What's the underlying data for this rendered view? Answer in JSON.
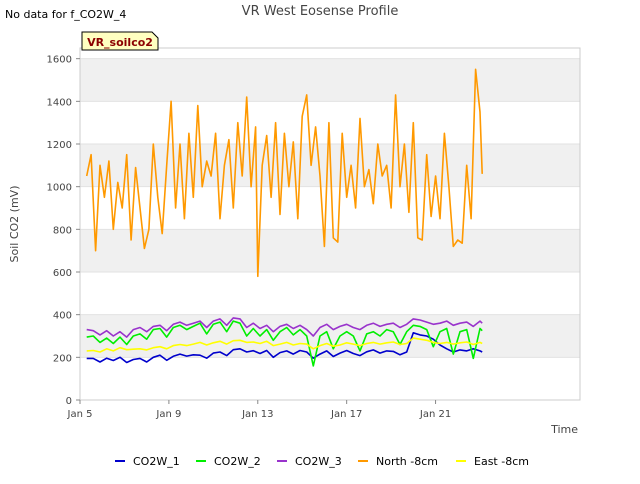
{
  "notice": "No data for f_CO2W_4",
  "badge": "VR_soilco2",
  "colors": {
    "badge_bg": "#ffffc0",
    "badge_text": "#8b0000",
    "band": "#f0f0f0"
  },
  "chart_data": {
    "type": "line",
    "title": "VR West Eosense Profile",
    "xlabel": "Time",
    "ylabel": "Soil CO2 (mV)",
    "x_unit": "days (day 0 = Jan 5)",
    "xlim": [
      0,
      22.5
    ],
    "ylim": [
      0,
      1650
    ],
    "x_ticks": [
      {
        "value": 0,
        "label": "Jan 5"
      },
      {
        "value": 4,
        "label": "Jan 9"
      },
      {
        "value": 8,
        "label": "Jan 13"
      },
      {
        "value": 12,
        "label": "Jan 17"
      },
      {
        "value": 16,
        "label": "Jan 21"
      }
    ],
    "y_ticks": [
      0,
      200,
      400,
      600,
      800,
      1000,
      1200,
      1400,
      1600
    ],
    "grid": true,
    "legend_position": "bottom",
    "series": [
      {
        "name": "CO2W_1",
        "color": "#0000cc",
        "x": [
          0.3,
          0.6,
          0.9,
          1.2,
          1.5,
          1.8,
          2.1,
          2.4,
          2.7,
          3.0,
          3.3,
          3.6,
          3.9,
          4.2,
          4.5,
          4.8,
          5.1,
          5.4,
          5.7,
          6.0,
          6.3,
          6.6,
          6.9,
          7.2,
          7.5,
          7.8,
          8.1,
          8.4,
          8.7,
          9.0,
          9.3,
          9.6,
          9.9,
          10.2,
          10.5,
          10.8,
          11.1,
          11.4,
          11.7,
          12.0,
          12.3,
          12.6,
          12.9,
          13.2,
          13.5,
          13.8,
          14.1,
          14.4,
          14.7,
          15.0,
          15.3,
          15.6,
          15.9,
          16.2,
          16.5,
          16.8,
          17.1,
          17.4,
          17.7,
          18.0,
          18.1
        ],
        "y": [
          195,
          195,
          178,
          196,
          185,
          200,
          176,
          190,
          195,
          178,
          200,
          210,
          186,
          205,
          215,
          206,
          212,
          210,
          196,
          220,
          225,
          208,
          236,
          240,
          225,
          231,
          218,
          232,
          200,
          222,
          230,
          215,
          232,
          225,
          196,
          215,
          230,
          204,
          220,
          232,
          218,
          208,
          226,
          235,
          220,
          230,
          228,
          212,
          225,
          315,
          305,
          300,
          285,
          258,
          240,
          225,
          235,
          230,
          240,
          230,
          225
        ]
      },
      {
        "name": "CO2W_2",
        "color": "#00ee00",
        "x": [
          0.3,
          0.6,
          0.9,
          1.2,
          1.5,
          1.8,
          2.1,
          2.4,
          2.7,
          3.0,
          3.3,
          3.6,
          3.9,
          4.2,
          4.5,
          4.8,
          5.1,
          5.4,
          5.7,
          6.0,
          6.3,
          6.6,
          6.9,
          7.2,
          7.5,
          7.8,
          8.1,
          8.4,
          8.7,
          9.0,
          9.3,
          9.6,
          9.9,
          10.2,
          10.5,
          10.8,
          11.1,
          11.4,
          11.7,
          12.0,
          12.3,
          12.6,
          12.9,
          13.2,
          13.5,
          13.8,
          14.1,
          14.4,
          14.7,
          15.0,
          15.3,
          15.6,
          15.9,
          16.2,
          16.5,
          16.8,
          17.1,
          17.4,
          17.7,
          18.0,
          18.1
        ],
        "y": [
          295,
          300,
          270,
          290,
          265,
          295,
          260,
          300,
          310,
          285,
          330,
          335,
          295,
          340,
          350,
          330,
          345,
          360,
          310,
          355,
          365,
          320,
          370,
          360,
          300,
          335,
          300,
          330,
          280,
          320,
          340,
          305,
          330,
          300,
          160,
          300,
          320,
          240,
          300,
          320,
          300,
          230,
          310,
          320,
          300,
          330,
          320,
          260,
          320,
          350,
          345,
          330,
          250,
          320,
          335,
          215,
          320,
          330,
          195,
          335,
          325
        ]
      },
      {
        "name": "CO2W_3",
        "color": "#9933cc",
        "x": [
          0.3,
          0.6,
          0.9,
          1.2,
          1.5,
          1.8,
          2.1,
          2.4,
          2.7,
          3.0,
          3.3,
          3.6,
          3.9,
          4.2,
          4.5,
          4.8,
          5.1,
          5.4,
          5.7,
          6.0,
          6.3,
          6.6,
          6.9,
          7.2,
          7.5,
          7.8,
          8.1,
          8.4,
          8.7,
          9.0,
          9.3,
          9.6,
          9.9,
          10.2,
          10.5,
          10.8,
          11.1,
          11.4,
          11.7,
          12.0,
          12.3,
          12.6,
          12.9,
          13.2,
          13.5,
          13.8,
          14.1,
          14.4,
          14.7,
          15.0,
          15.3,
          15.6,
          15.9,
          16.2,
          16.5,
          16.8,
          17.1,
          17.4,
          17.7,
          18.0,
          18.1
        ],
        "y": [
          330,
          325,
          305,
          325,
          300,
          320,
          295,
          330,
          340,
          320,
          345,
          350,
          325,
          355,
          365,
          350,
          360,
          370,
          340,
          370,
          380,
          350,
          385,
          380,
          340,
          360,
          335,
          350,
          320,
          345,
          355,
          335,
          350,
          330,
          300,
          340,
          355,
          330,
          345,
          355,
          340,
          330,
          350,
          360,
          345,
          355,
          360,
          340,
          355,
          380,
          375,
          365,
          355,
          360,
          370,
          350,
          360,
          365,
          345,
          370,
          360
        ]
      },
      {
        "name": "North -8cm",
        "color": "#ff9900",
        "x": [
          0.3,
          0.5,
          0.7,
          0.9,
          1.1,
          1.3,
          1.5,
          1.7,
          1.9,
          2.1,
          2.3,
          2.5,
          2.7,
          2.9,
          3.1,
          3.3,
          3.5,
          3.7,
          3.9,
          4.1,
          4.3,
          4.5,
          4.7,
          4.9,
          5.1,
          5.3,
          5.5,
          5.7,
          5.9,
          6.1,
          6.3,
          6.5,
          6.7,
          6.9,
          7.1,
          7.3,
          7.5,
          7.7,
          7.9,
          8.0,
          8.2,
          8.4,
          8.6,
          8.8,
          9.0,
          9.2,
          9.4,
          9.6,
          9.8,
          10.0,
          10.2,
          10.4,
          10.6,
          10.8,
          11.0,
          11.2,
          11.4,
          11.6,
          11.8,
          12.0,
          12.2,
          12.4,
          12.6,
          12.8,
          13.0,
          13.2,
          13.4,
          13.6,
          13.8,
          14.0,
          14.2,
          14.4,
          14.6,
          14.8,
          15.0,
          15.2,
          15.4,
          15.6,
          15.8,
          16.0,
          16.2,
          16.4,
          16.6,
          16.8,
          17.0,
          17.2,
          17.4,
          17.6,
          17.8,
          18.0,
          18.1
        ],
        "y": [
          1050,
          1150,
          700,
          1100,
          950,
          1120,
          800,
          1020,
          900,
          1150,
          750,
          1090,
          900,
          710,
          800,
          1200,
          950,
          780,
          1100,
          1400,
          900,
          1200,
          850,
          1250,
          950,
          1380,
          1000,
          1120,
          1050,
          1250,
          850,
          1100,
          1220,
          900,
          1300,
          1050,
          1420,
          1000,
          1280,
          580,
          1100,
          1240,
          950,
          1300,
          870,
          1250,
          1000,
          1210,
          850,
          1330,
          1430,
          1100,
          1280,
          1050,
          720,
          1300,
          760,
          740,
          1250,
          950,
          1100,
          900,
          1320,
          1000,
          1080,
          920,
          1200,
          1050,
          1100,
          900,
          1430,
          1000,
          1200,
          880,
          1300,
          760,
          750,
          1150,
          860,
          1050,
          850,
          1250,
          1000,
          720,
          750,
          735,
          1100,
          850,
          1550,
          1350,
          1060
        ]
      },
      {
        "name": "East -8cm",
        "color": "#ffff00",
        "x": [
          0.3,
          0.6,
          0.9,
          1.2,
          1.5,
          1.8,
          2.1,
          2.4,
          2.7,
          3.0,
          3.3,
          3.6,
          3.9,
          4.2,
          4.5,
          4.8,
          5.1,
          5.4,
          5.7,
          6.0,
          6.3,
          6.6,
          6.9,
          7.2,
          7.5,
          7.8,
          8.1,
          8.4,
          8.7,
          9.0,
          9.3,
          9.6,
          9.9,
          10.2,
          10.5,
          10.8,
          11.1,
          11.4,
          11.7,
          12.0,
          12.3,
          12.6,
          12.9,
          13.2,
          13.5,
          13.8,
          14.1,
          14.4,
          14.7,
          15.0,
          15.3,
          15.6,
          15.9,
          16.2,
          16.5,
          16.8,
          17.1,
          17.4,
          17.7,
          18.0,
          18.1
        ],
        "y": [
          230,
          232,
          225,
          240,
          230,
          245,
          236,
          238,
          240,
          235,
          245,
          250,
          240,
          255,
          260,
          255,
          262,
          270,
          258,
          268,
          275,
          262,
          278,
          280,
          270,
          272,
          265,
          275,
          255,
          262,
          270,
          258,
          265,
          262,
          240,
          255,
          265,
          252,
          258,
          268,
          262,
          255,
          265,
          270,
          262,
          268,
          272,
          260,
          265,
          290,
          285,
          280,
          270,
          265,
          270,
          262,
          268,
          272,
          260,
          270,
          265
        ]
      }
    ]
  }
}
